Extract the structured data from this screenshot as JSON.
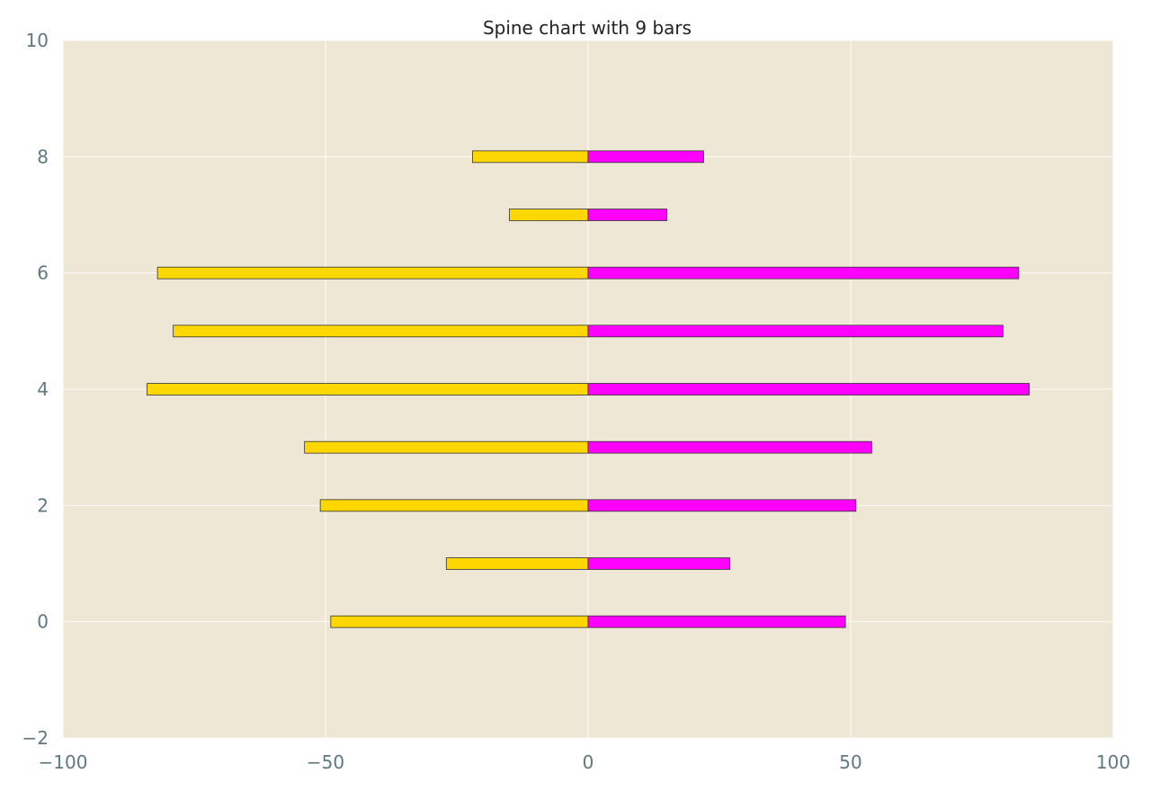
{
  "chart_data": {
    "type": "bar",
    "orientation": "horizontal",
    "title": "Spine chart with 9 bars",
    "xlabel": "",
    "ylabel": "",
    "xlim": [
      -100,
      100
    ],
    "ylim": [
      -2,
      10
    ],
    "x_ticks": [
      -100,
      -50,
      0,
      50,
      100
    ],
    "x_tick_labels": [
      "−100",
      "−50",
      "0",
      "50",
      "100"
    ],
    "y_ticks": [
      -2,
      0,
      2,
      4,
      6,
      8,
      10
    ],
    "y_tick_labels": [
      "−2",
      "0",
      "2",
      "4",
      "6",
      "8",
      "10"
    ],
    "grid": true,
    "legend": "none",
    "categories": [
      0,
      1,
      2,
      3,
      4,
      5,
      6,
      7,
      8
    ],
    "series": [
      {
        "values": [
          -49,
          -27,
          -51,
          -54,
          -84,
          -79,
          -82,
          -15,
          -22
        ],
        "color": "#ffd700"
      },
      {
        "values": [
          49,
          27,
          51,
          54,
          84,
          79,
          82,
          15,
          22
        ],
        "color": "#ff00ff"
      }
    ],
    "background_color": "#eee7d5",
    "bar_height": 0.2
  }
}
